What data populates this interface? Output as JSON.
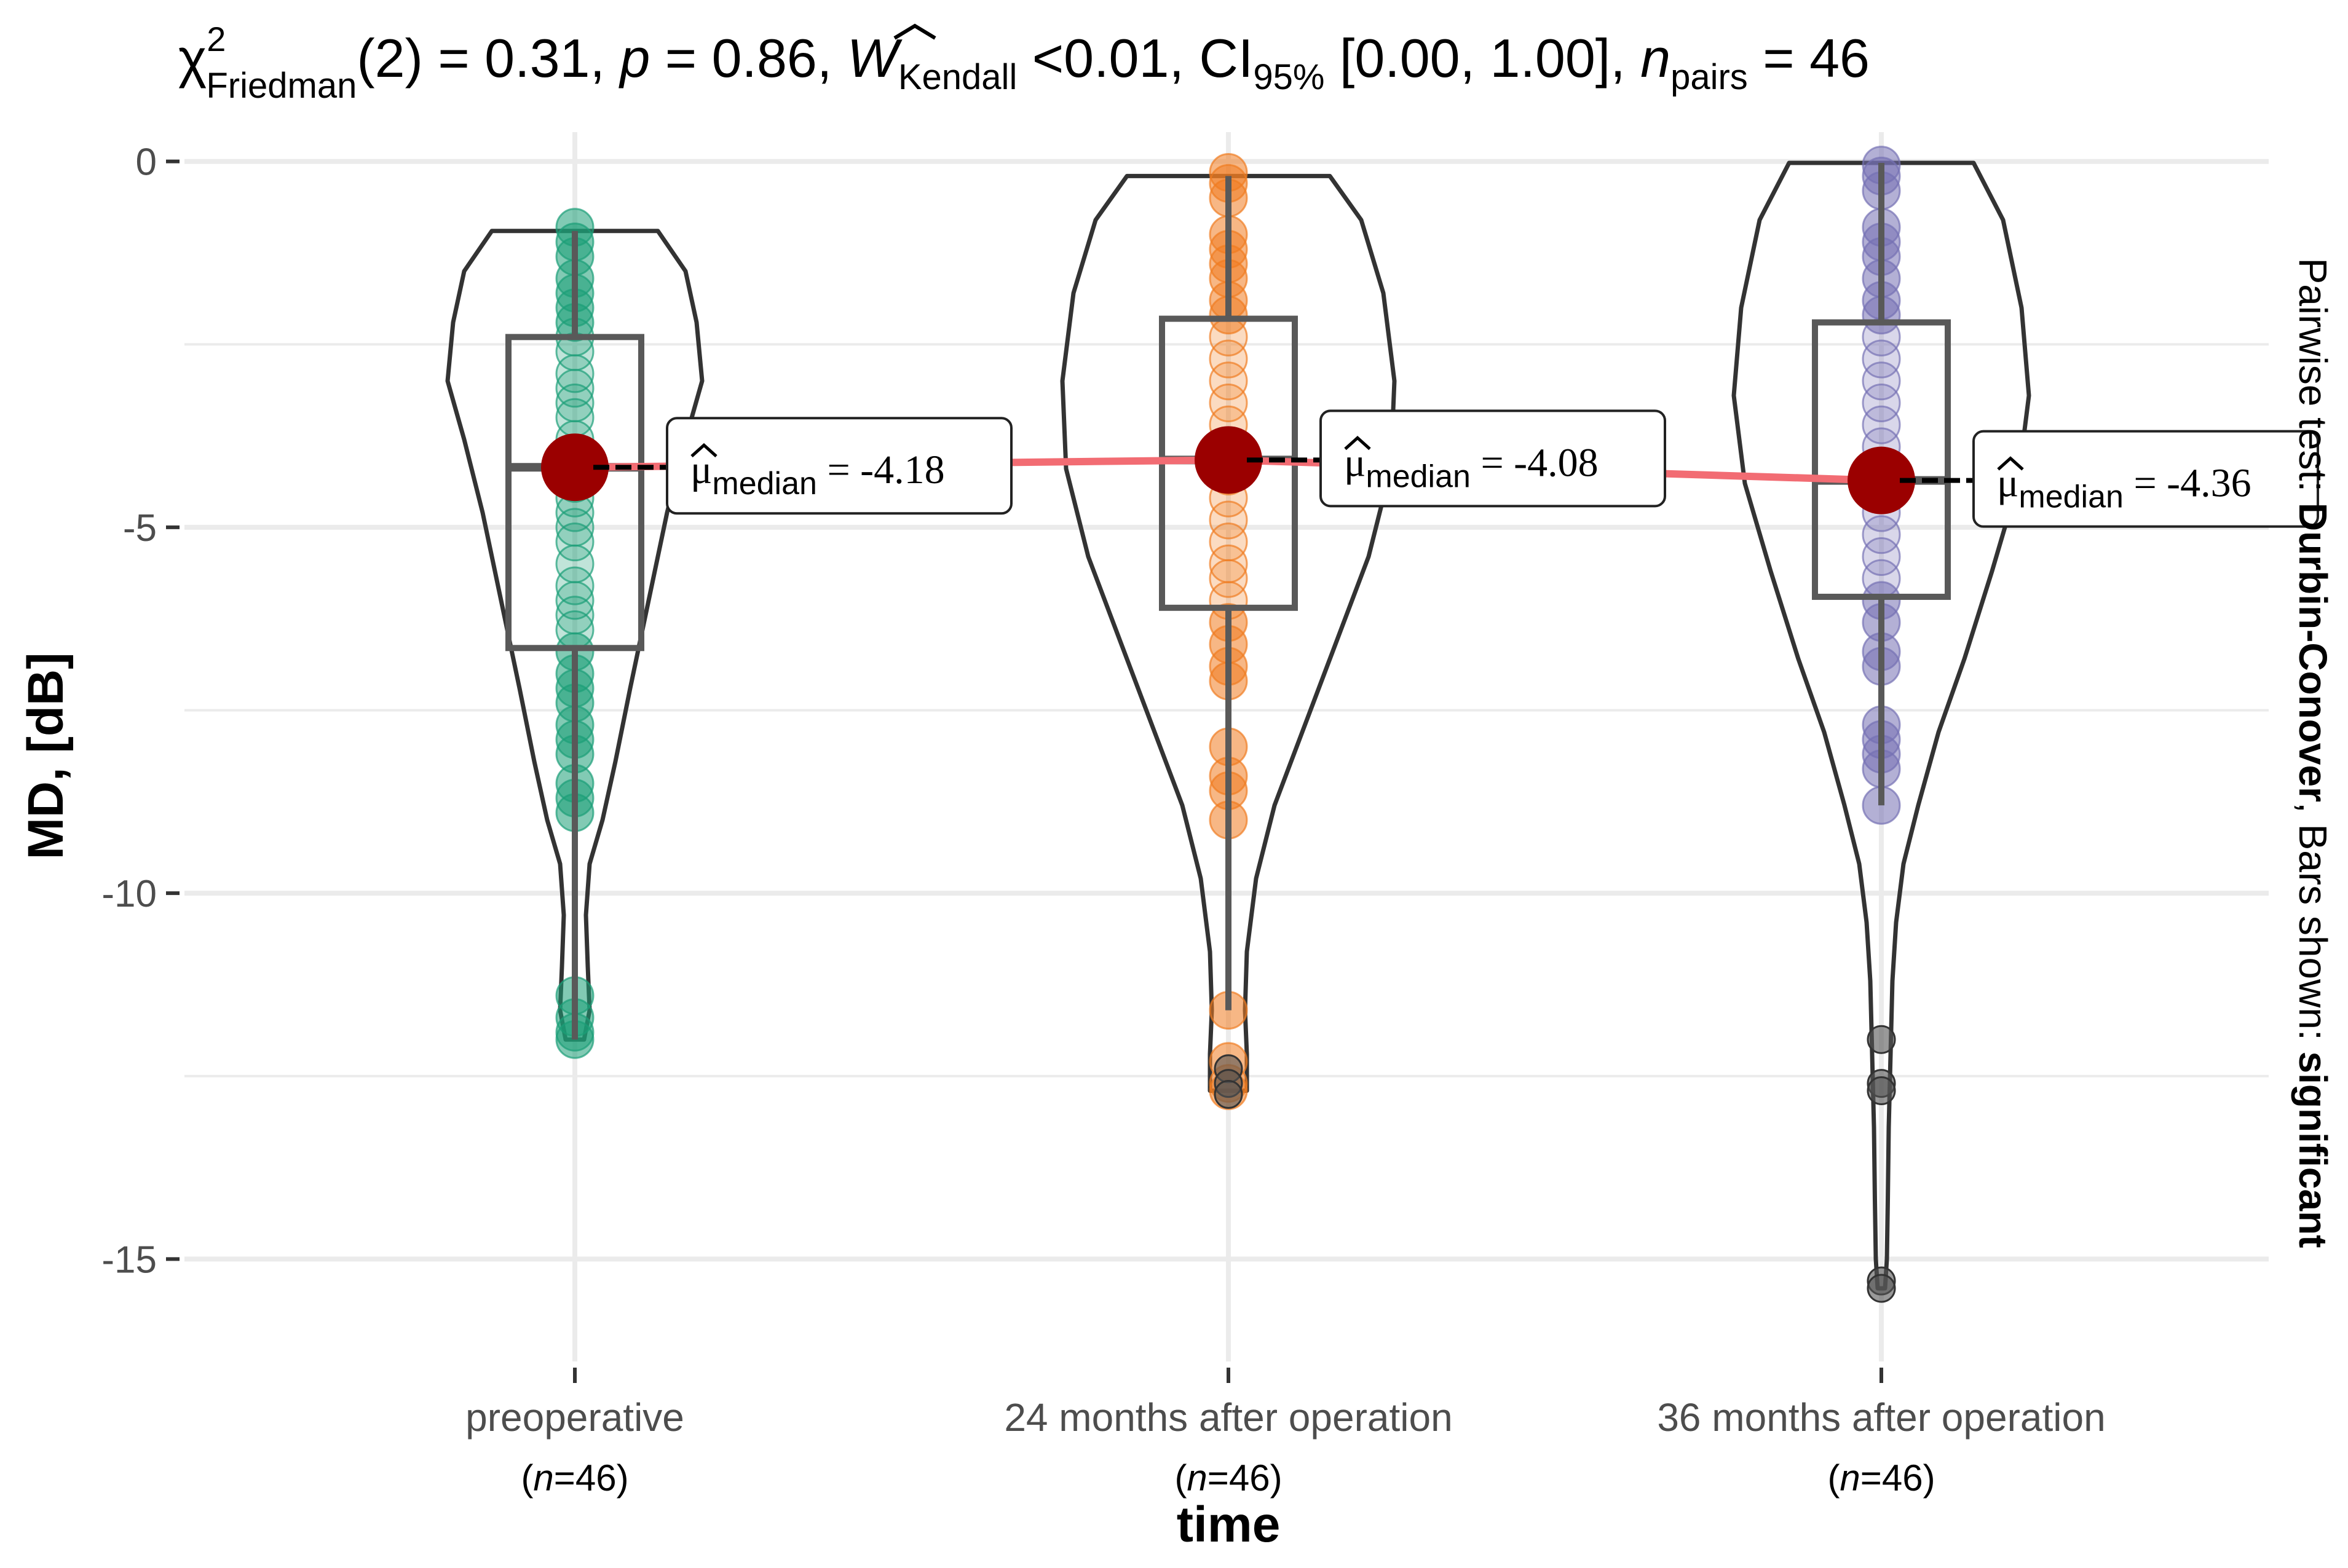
{
  "chart_data": {
    "type": "violin",
    "title_parts": {
      "chi": "χ",
      "chi_sup": "2",
      "chi_sub": "Friedman",
      "chi_val": "(2) = 0.31, ",
      "p_sym": "p",
      "p_val": " = 0.86, ",
      "w_sym": "W",
      "w_sub": "Kendall",
      "w_val": " <0.01, CI",
      "ci_sub": "95%",
      "ci_val": " [0.00, 1.00], ",
      "n_sym": "n",
      "n_sub": "pairs",
      "n_val": " = 46"
    },
    "xlabel": "time",
    "ylabel": "MD, [dB]",
    "ylim": [
      -16.4,
      0.4
    ],
    "yticks": [
      0,
      -5,
      -10,
      -15
    ],
    "ytick_labels": [
      "0",
      "-5",
      "-10",
      "-15"
    ],
    "y_minor": [
      -2.5,
      -7.5,
      -12.5
    ],
    "pairwise_caption": {
      "prefix": "Pairwise test: ",
      "method": "Durbin-Conover",
      "middle": ", Bars shown: ",
      "result": "significant"
    },
    "groups": [
      {
        "name": "preoperative",
        "n_label": "(n=46)",
        "n_prefix": "(",
        "n_sym": "n",
        "n_rest": "=46)",
        "color": "#1b9e77",
        "median": -4.18,
        "median_label": "= -4.18",
        "q1": -6.65,
        "q3": -2.4,
        "whisker_low": -12.0,
        "whisker_high": -0.95,
        "violin_max": -0.95,
        "violin_min": -12.0,
        "violin_profile": [
          [
            -0.95,
            0.45
          ],
          [
            -1.5,
            0.6
          ],
          [
            -2.2,
            0.66
          ],
          [
            -3.0,
            0.69
          ],
          [
            -3.8,
            0.6
          ],
          [
            -4.8,
            0.5
          ],
          [
            -6.0,
            0.4
          ],
          [
            -7.2,
            0.3
          ],
          [
            -8.2,
            0.22
          ],
          [
            -9.0,
            0.15
          ],
          [
            -9.6,
            0.08
          ],
          [
            -10.3,
            0.06
          ],
          [
            -11.0,
            0.07
          ],
          [
            -11.6,
            0.08
          ],
          [
            -12.0,
            0.05
          ]
        ],
        "points": [
          -0.9,
          -1.1,
          -1.3,
          -1.6,
          -1.8,
          -2.0,
          -2.2,
          -2.4,
          -2.6,
          -2.9,
          -3.1,
          -3.3,
          -3.5,
          -3.8,
          -4.0,
          -4.2,
          -4.4,
          -4.6,
          -4.8,
          -5.0,
          -5.2,
          -5.5,
          -5.8,
          -6.0,
          -6.2,
          -6.4,
          -6.7,
          -7.0,
          -7.2,
          -7.4,
          -7.7,
          -7.9,
          -8.1,
          -8.5,
          -8.7,
          -8.9,
          -11.4,
          -11.7,
          -11.9,
          -12.0
        ],
        "outliers": []
      },
      {
        "name": "24 months after operation",
        "n_label": "(n=46)",
        "n_prefix": "(",
        "n_sym": "n",
        "n_rest": "=46)",
        "color": "#f07c21",
        "median": -4.08,
        "median_label": "= -4.08",
        "q1": -6.1,
        "q3": -2.15,
        "whisker_low": -11.6,
        "whisker_high": -0.2,
        "violin_max": -0.2,
        "violin_min": -12.7,
        "violin_profile": [
          [
            -0.2,
            0.55
          ],
          [
            -0.8,
            0.72
          ],
          [
            -1.8,
            0.84
          ],
          [
            -3.0,
            0.9
          ],
          [
            -4.2,
            0.88
          ],
          [
            -5.4,
            0.76
          ],
          [
            -6.6,
            0.58
          ],
          [
            -7.8,
            0.4
          ],
          [
            -8.8,
            0.25
          ],
          [
            -9.8,
            0.15
          ],
          [
            -10.8,
            0.1
          ],
          [
            -11.6,
            0.09
          ],
          [
            -12.2,
            0.1
          ],
          [
            -12.7,
            0.1
          ]
        ],
        "points": [
          -0.15,
          -0.3,
          -0.5,
          -1.0,
          -1.2,
          -1.4,
          -1.6,
          -1.9,
          -2.1,
          -2.4,
          -2.7,
          -3.0,
          -3.3,
          -3.6,
          -3.9,
          -4.1,
          -4.3,
          -4.6,
          -4.9,
          -5.2,
          -5.5,
          -5.7,
          -6.0,
          -6.3,
          -6.6,
          -6.9,
          -7.1,
          -8.0,
          -8.4,
          -8.6,
          -9.0,
          -11.6,
          -12.3,
          -12.6,
          -12.7
        ],
        "outliers": [
          -12.4,
          -12.6,
          -12.75
        ]
      },
      {
        "name": "36 months after operation",
        "n_label": "(n=46)",
        "n_prefix": "(",
        "n_sym": "n",
        "n_rest": "=46)",
        "color": "#7570b3",
        "median": -4.36,
        "median_label": "= -4.36",
        "q1": -5.95,
        "q3": -2.2,
        "whisker_low": -8.8,
        "whisker_high": -0.02,
        "violin_max": -0.02,
        "violin_min": -15.4,
        "violin_profile": [
          [
            -0.02,
            0.5
          ],
          [
            -0.8,
            0.66
          ],
          [
            -2.0,
            0.76
          ],
          [
            -3.2,
            0.8
          ],
          [
            -4.4,
            0.74
          ],
          [
            -5.6,
            0.6
          ],
          [
            -6.8,
            0.45
          ],
          [
            -7.8,
            0.31
          ],
          [
            -8.8,
            0.2
          ],
          [
            -9.6,
            0.12
          ],
          [
            -10.4,
            0.08
          ],
          [
            -11.2,
            0.06
          ],
          [
            -12.2,
            0.05
          ],
          [
            -13.2,
            0.04
          ],
          [
            -14.2,
            0.035
          ],
          [
            -15.0,
            0.03
          ],
          [
            -15.4,
            0.02
          ]
        ],
        "points": [
          -0.05,
          -0.2,
          -0.4,
          -0.9,
          -1.1,
          -1.3,
          -1.6,
          -1.9,
          -2.1,
          -2.4,
          -2.7,
          -3.0,
          -3.3,
          -3.6,
          -3.9,
          -4.2,
          -4.5,
          -4.8,
          -5.1,
          -5.4,
          -5.7,
          -6.0,
          -6.3,
          -6.7,
          -6.9,
          -7.7,
          -7.9,
          -8.1,
          -8.3,
          -8.8
        ],
        "outliers": [
          -12.0,
          -12.6,
          -12.7,
          -15.3,
          -15.4
        ]
      }
    ],
    "median_line_color": "#f26c73",
    "median_point_color": "#9b0000",
    "box_color": "#595959",
    "violin_stroke": "#333333",
    "grid_color": "#ebebeb"
  }
}
